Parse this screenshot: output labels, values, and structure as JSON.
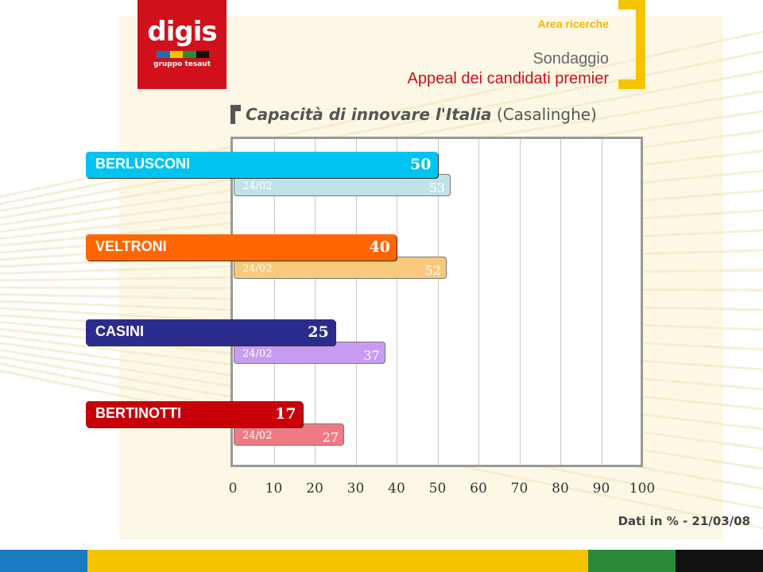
{
  "header": {
    "logo_word": "digis",
    "logo_sub": "gruppo tesaut",
    "logo_colors": [
      "#1f6fb5",
      "#f5c400",
      "#2a8a3a",
      "#111111"
    ],
    "area": "Area ricerche",
    "sondaggio": "Sondaggio",
    "appeal": "Appeal dei candidati premier"
  },
  "chart_data": {
    "type": "bar",
    "orientation": "horizontal",
    "title": "Capacità di innovare l'Italia",
    "subtitle": "(Casalinghe)",
    "xlim": [
      0,
      100
    ],
    "xticks": [
      "0",
      "10",
      "20",
      "30",
      "40",
      "50",
      "60",
      "70",
      "80",
      "90",
      "100"
    ],
    "grid": true,
    "categories": [
      "BERLUSCONI",
      "VELTRONI",
      "CASINI",
      "BERTINOTTI"
    ],
    "series": [
      {
        "name": "",
        "values": [
          50,
          40,
          25,
          17
        ],
        "colors": [
          "#00c4f2",
          "#ff6600",
          "#2b2b8c",
          "#c8000a"
        ]
      },
      {
        "name": "24/02",
        "values": [
          53,
          52,
          37,
          27
        ],
        "colors": [
          "#bfe3e8",
          "#f8c97a",
          "#c79cf2",
          "#f07a84"
        ]
      }
    ],
    "prev_label": "24/02"
  },
  "footer": {
    "note": "Dati in % - 21/03/08"
  },
  "bottom_stripe_colors": [
    "#1a7bc0",
    "#f5c400",
    "#2a8a3a",
    "#111111"
  ]
}
